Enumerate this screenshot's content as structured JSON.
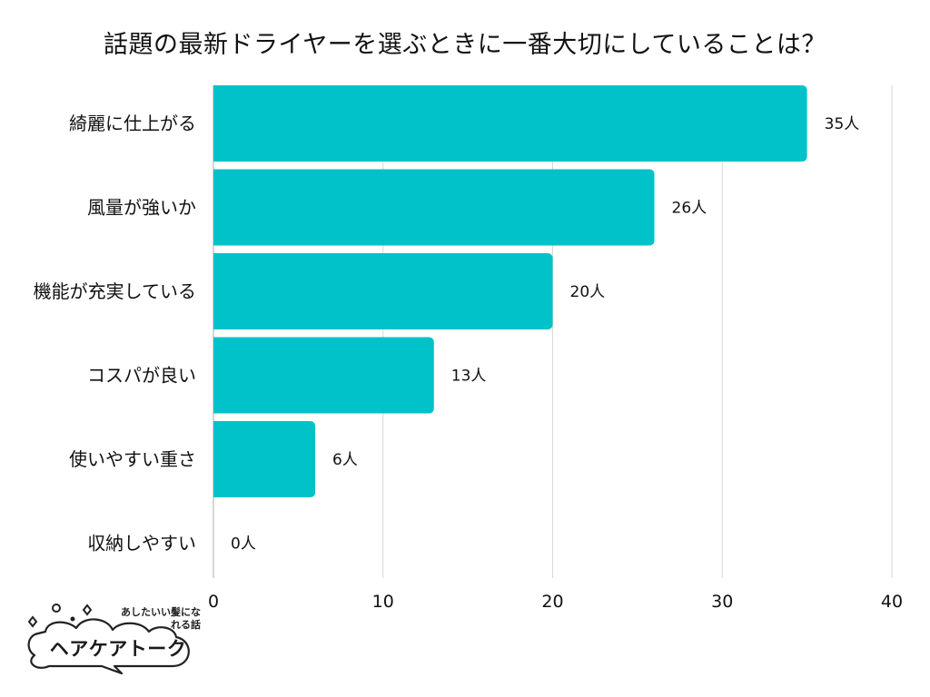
{
  "title": "話題の最新ドライヤーを選ぶときに一番大切にしていることは？",
  "chart_data": {
    "type": "bar",
    "orientation": "horizontal",
    "title": "話題の最新ドライヤーを選ぶときに一番大切にしていることは？",
    "categories": [
      "綺麗に仕上がる",
      "風量が強いか",
      "機能が充実している",
      "コスパが良い",
      "使いやすい重さ",
      "収納しやすい"
    ],
    "values": [
      35,
      26,
      20,
      13,
      6,
      0
    ],
    "value_suffix": "人",
    "xlim": [
      0,
      40
    ],
    "xticks": [
      0,
      10,
      20,
      30,
      40
    ],
    "xlabel": "",
    "ylabel": "",
    "grid": true,
    "bar_color": "#00C2C8"
  },
  "logo": {
    "tagline": "あしたいい髪になれる話",
    "name": "ヘアケアトーク"
  }
}
